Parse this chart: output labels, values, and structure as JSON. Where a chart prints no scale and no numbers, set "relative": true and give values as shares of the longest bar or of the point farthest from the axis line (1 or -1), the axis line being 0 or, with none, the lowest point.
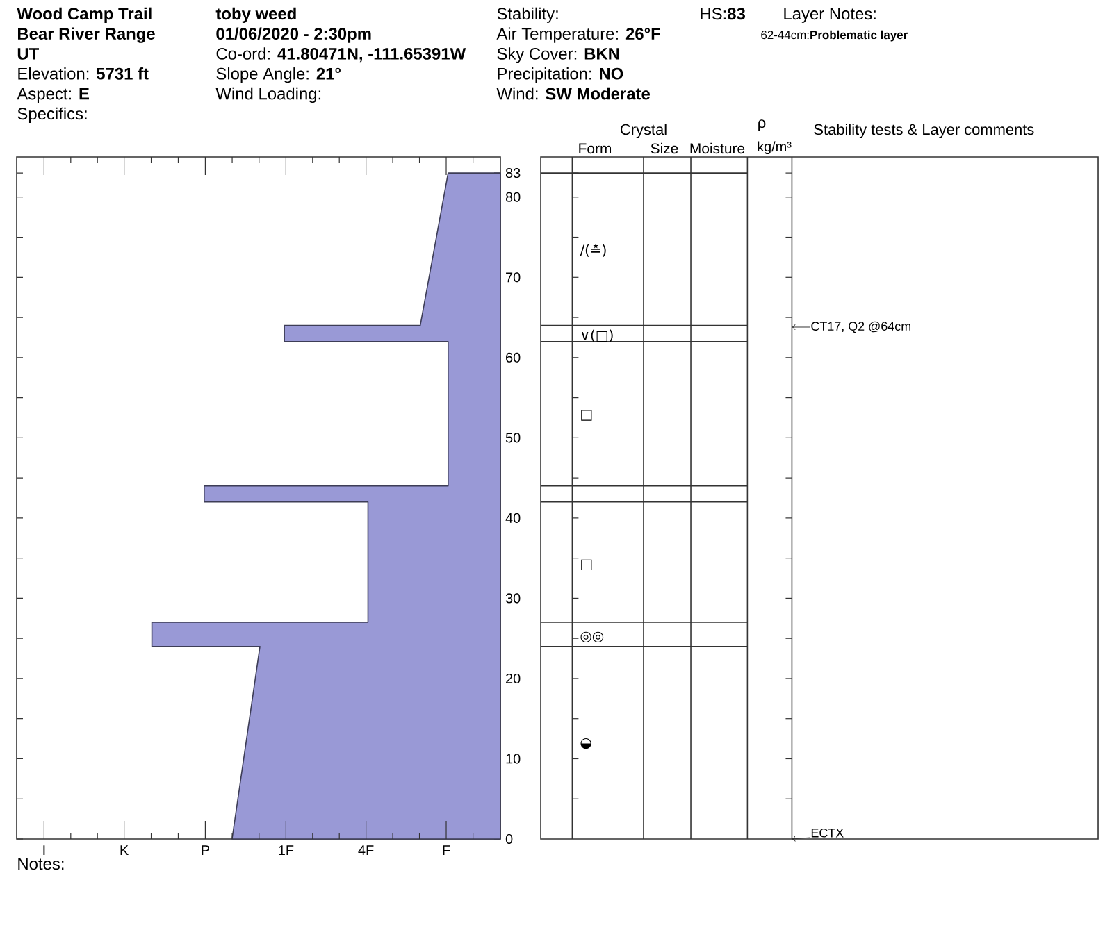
{
  "chart_data": {
    "type": "area",
    "title": "Wood Camp Trail",
    "subtitle": "Bear River Range",
    "annotations": [
      "UT",
      "Elevation: **5731 ft**",
      "Aspect: **E**",
      "Specifics:",
      "toby weed",
      "01/06/2020 - 2:30pm",
      "Co-ord: **41.80471N, -111.65391W**",
      "Slope Angle: **21°**",
      "Wind Loading:",
      "Stability:",
      "Air Temperature: **26°F**",
      "Sky Cover: **BKN**",
      "Precipitation: **NO**",
      "Wind: **SW Moderate**",
      "HS:**83**",
      "Layer Notes:",
      "62-44cm:**Problematic layer**",
      "I",
      "K",
      "P",
      "1F",
      "4F",
      "F",
      "Notes:",
      "Crystal",
      "Form",
      "Size",
      "Moisture",
      "ρ",
      "kg/m³",
      "Stability tests & Layer comments",
      "∕(≛)",
      "∨(□)",
      "□",
      "□",
      "◎◎",
      "◒",
      "CT17, Q2 @64cm",
      "ECTX"
    ],
    "orientation": "horizontal",
    "relative": true,
    "x": [
      83,
      64,
      64,
      62,
      62,
      44,
      44,
      42,
      42,
      27,
      27,
      24,
      24,
      0
    ],
    "values": [
      -0.15,
      -0.23,
      -0.62,
      -0.62,
      -0.15,
      -0.15,
      -0.85,
      -0.85,
      -0.38,
      -0.38,
      -1,
      -1,
      -0.69,
      -0.77
    ],
    "color": "#9999d6",
    "ylim": [
      0,
      85
    ],
    "yticks": [
      0,
      10,
      20,
      30,
      40,
      50,
      60,
      70,
      80,
      83
    ]
  }
}
